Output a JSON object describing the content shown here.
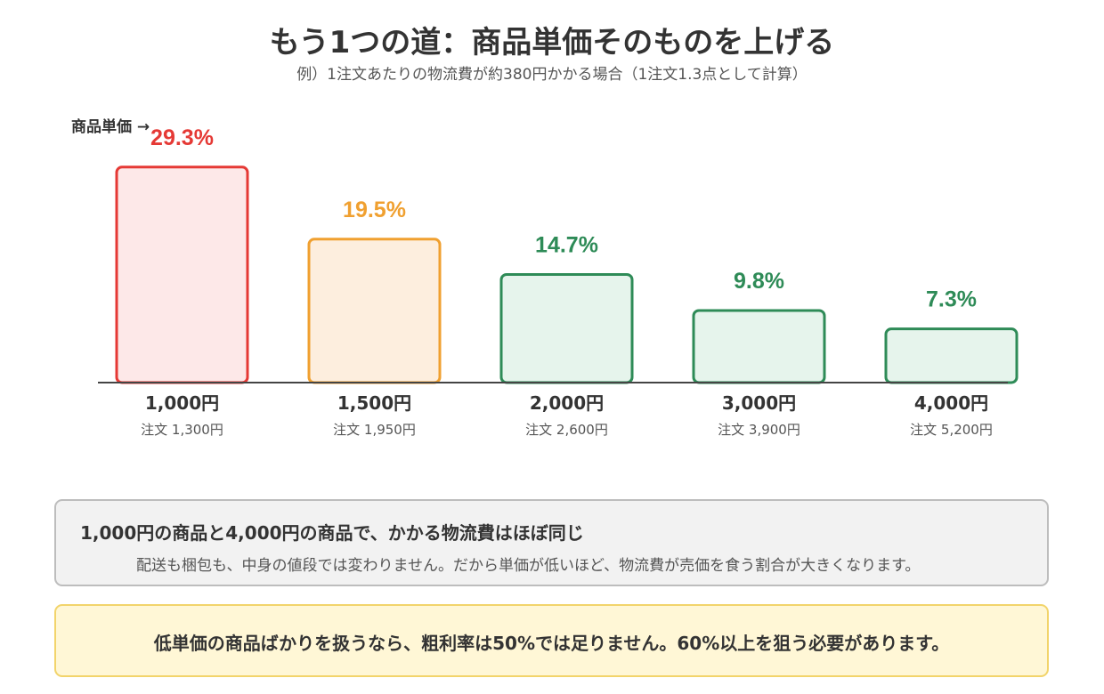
{
  "header": {
    "title": "もう1つの道：商品単価そのものを上げる",
    "subtitle": "例）1注文あたりの物流費が約380円かかる場合（1注文1.3点として計算）"
  },
  "chart_data": {
    "type": "bar",
    "ylabel": "商品単価 →",
    "categories": [
      "1,000円",
      "1,500円",
      "2,000円",
      "3,000円",
      "4,000円"
    ],
    "sublabels": [
      "注文 1,300円",
      "注文 1,950円",
      "注文 2,600円",
      "注文 3,900円",
      "注文 5,200円"
    ],
    "values": [
      29.3,
      19.5,
      14.7,
      9.8,
      7.3
    ],
    "value_labels": [
      "29.3%",
      "19.5%",
      "14.7%",
      "9.8%",
      "7.3%"
    ],
    "ylim": [
      0,
      30
    ],
    "grid": false,
    "colors": [
      {
        "stroke": "#e53935",
        "fill": "#fde8e8",
        "label": "#e53935"
      },
      {
        "stroke": "#f0a030",
        "fill": "#fdeede",
        "label": "#f0a030"
      },
      {
        "stroke": "#2e8b57",
        "fill": "#e6f4ec",
        "label": "#2e8b57"
      },
      {
        "stroke": "#2e8b57",
        "fill": "#e6f4ec",
        "label": "#2e8b57"
      },
      {
        "stroke": "#2e8b57",
        "fill": "#e6f4ec",
        "label": "#2e8b57"
      }
    ]
  },
  "note": {
    "heading": "1,000円の商品と4,000円の商品で、かかる物流費はほぼ同じ",
    "body": "配送も梱包も、中身の値段では変わりません。だから単価が低いほど、物流費が売価を食う割合が大きくなります。"
  },
  "warning": {
    "text": "低単価の商品ばかりを扱うなら、粗利率は50%では足りません。60%以上を狙う必要があります。"
  }
}
